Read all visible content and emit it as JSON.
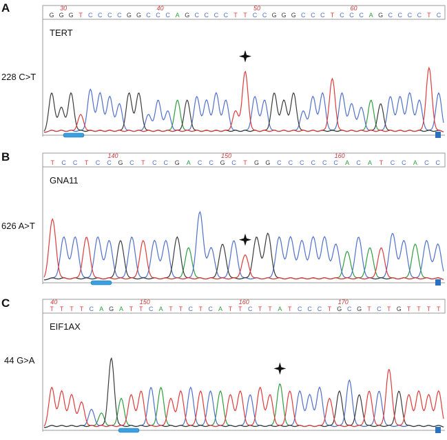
{
  "colors": {
    "A": "#2e9e3e",
    "C": "#5070cc",
    "G": "#3a3a3a",
    "T": "#e03a3a",
    "pos": "#d03a3a",
    "frame": "#9a9a9a",
    "star": "#111111",
    "scroll": "#3aa0e0"
  },
  "panels": [
    {
      "letter": "A",
      "gene": "TERT",
      "mutation": "228 C>T",
      "sequence": "GGGTCCCCGGCCCAGCCCCTTCCGGGCCCTCCCAGCCCCTC",
      "positions": [
        {
          "label": "30",
          "index": 1
        },
        {
          "label": "40",
          "index": 11
        },
        {
          "label": "50",
          "index": 21
        },
        {
          "label": "60",
          "index": 31
        }
      ],
      "peak_heights": [
        0.55,
        0.35,
        0.55,
        0.25,
        0.6,
        0.55,
        0.5,
        0.4,
        0.55,
        0.55,
        0.25,
        0.45,
        0.3,
        0.45,
        0.45,
        0.5,
        0.45,
        0.55,
        0.45,
        0.3,
        0.85,
        0.5,
        0.45,
        0.55,
        0.45,
        0.55,
        0.3,
        0.5,
        0.55,
        0.75,
        0.55,
        0.4,
        0.35,
        0.45,
        0.4,
        0.5,
        0.5,
        0.55,
        0.45,
        0.9,
        0.55
      ],
      "star_index": 20
    },
    {
      "letter": "B",
      "gene": "GNA11",
      "mutation": "626 A>T",
      "sequence": "TCCTCCGCTCCGACCGCTGGCCCCCCACATCCACC",
      "positions": [
        {
          "label": "140",
          "index": 5
        },
        {
          "label": "150",
          "index": 15
        },
        {
          "label": "160",
          "index": 25
        }
      ],
      "peak_heights": [
        0.85,
        0.6,
        0.6,
        0.6,
        0.6,
        0.55,
        0.55,
        0.6,
        0.55,
        0.55,
        0.55,
        0.6,
        0.45,
        0.95,
        0.45,
        0.5,
        0.55,
        0.35,
        0.6,
        0.65,
        0.6,
        0.6,
        0.55,
        0.6,
        0.6,
        0.5,
        0.4,
        0.6,
        0.45,
        0.45,
        0.65,
        0.55,
        0.5,
        0.55,
        0.5
      ],
      "star_index": 17
    },
    {
      "letter": "C",
      "gene": "EIF1AX",
      "mutation": "44 G>A",
      "sequence": "TTTTCAGATTCATTCTCATTCTTATCCCTGCGTCTGTTTT",
      "positions": [
        {
          "label": "40",
          "index": 0
        },
        {
          "label": "150",
          "index": 9
        },
        {
          "label": "160",
          "index": 19
        },
        {
          "label": "170",
          "index": 29
        }
      ],
      "peak_heights": [
        0.55,
        0.5,
        0.45,
        0.35,
        0.25,
        0.2,
        0.95,
        0.4,
        0.45,
        0.5,
        0.55,
        0.55,
        0.4,
        0.5,
        0.55,
        0.5,
        0.5,
        0.5,
        0.45,
        0.5,
        0.45,
        0.55,
        0.45,
        0.6,
        0.5,
        0.5,
        0.45,
        0.55,
        0.4,
        0.5,
        0.65,
        0.45,
        0.5,
        0.5,
        0.8,
        0.5,
        0.45,
        0.5,
        0.45,
        0.5
      ],
      "star_index": 23
    }
  ]
}
